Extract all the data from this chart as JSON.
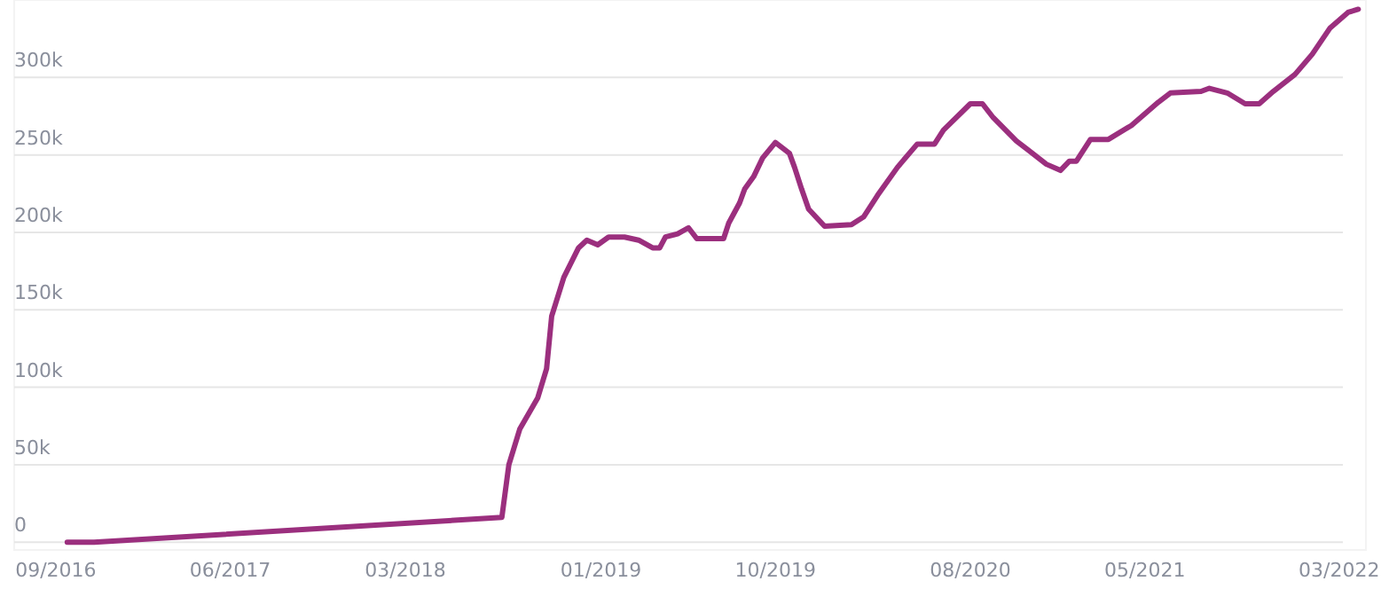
{
  "chart_data": {
    "type": "line",
    "grid": "y",
    "xlim": [
      "2016-07-27",
      "2022-05-12"
    ],
    "ylim": [
      -5000,
      350000
    ],
    "xticks": [
      {
        "value": "2016-09-30",
        "label": "09/2016"
      },
      {
        "value": "2017-06-30",
        "label": "06/2017"
      },
      {
        "value": "2018-03-31",
        "label": "03/2018"
      },
      {
        "value": "2019-01-31",
        "label": "01/2019"
      },
      {
        "value": "2019-10-31",
        "label": "10/2019"
      },
      {
        "value": "2020-08-31",
        "label": "08/2020"
      },
      {
        "value": "2021-05-31",
        "label": "05/2021"
      },
      {
        "value": "2022-03-31",
        "label": "03/2022"
      }
    ],
    "yticks": [
      0,
      {
        "value": 50000,
        "label": "50k"
      },
      {
        "value": 100000,
        "label": "100k"
      },
      {
        "value": 150000,
        "label": "150k"
      },
      {
        "value": 200000,
        "label": "200k"
      },
      {
        "value": 250000,
        "label": "250k"
      },
      {
        "value": 300000,
        "label": "300k"
      }
    ],
    "series": [
      {
        "color": "#9b2f7e",
        "x": [
          "2016-10-18",
          "2016-11-29",
          "2018-08-29",
          "2018-09-09",
          "2018-09-26",
          "2018-10-24",
          "2018-11-07",
          "2018-11-15",
          "2018-12-04",
          "2018-12-27",
          "2019-01-09",
          "2019-01-26",
          "2019-02-12",
          "2019-03-09",
          "2019-03-31",
          "2019-04-22",
          "2019-05-03",
          "2019-05-12",
          "2019-05-31",
          "2019-06-17",
          "2019-06-30",
          "2019-08-11",
          "2019-08-19",
          "2019-09-05",
          "2019-09-13",
          "2019-09-27",
          "2019-10-11",
          "2019-10-31",
          "2019-11-22",
          "2019-11-30",
          "2019-12-11",
          "2019-12-22",
          "2020-01-16",
          "2020-02-27",
          "2020-03-17",
          "2020-04-08",
          "2020-05-09",
          "2020-06-09",
          "2020-07-06",
          "2020-07-20",
          "2020-08-31",
          "2020-09-19",
          "2020-10-06",
          "2020-11-11",
          "2020-11-30",
          "2020-12-28",
          "2021-01-19",
          "2021-02-02",
          "2021-02-13",
          "2021-03-07",
          "2021-04-04",
          "2021-05-10",
          "2021-06-21",
          "2021-07-10",
          "2021-08-27",
          "2021-09-09",
          "2021-10-07",
          "2021-11-04",
          "2021-11-26",
          "2021-12-18",
          "2022-01-21",
          "2022-02-17",
          "2022-03-17",
          "2022-04-14",
          "2022-04-30"
        ],
        "values": [
          0,
          0,
          16000,
          50000,
          73000,
          93000,
          112000,
          146000,
          171000,
          190000,
          195000,
          192000,
          197000,
          197000,
          195000,
          190000,
          190000,
          197000,
          199000,
          203000,
          196000,
          196000,
          206000,
          219000,
          228000,
          236000,
          248000,
          258000,
          251000,
          242000,
          228000,
          215000,
          204000,
          205000,
          210000,
          224000,
          242000,
          257000,
          257000,
          266000,
          283000,
          283000,
          274000,
          259000,
          253000,
          244000,
          240000,
          246000,
          246000,
          260000,
          260000,
          269000,
          284000,
          290000,
          291000,
          293000,
          290000,
          283000,
          283000,
          291000,
          302000,
          315000,
          332000,
          342000,
          344000
        ]
      }
    ]
  }
}
